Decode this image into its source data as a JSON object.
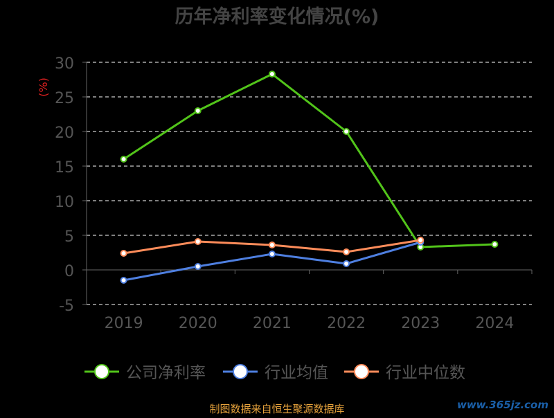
{
  "chart_data": {
    "type": "line",
    "title": "历年净利率变化情况(%)",
    "ylabel": "(%)",
    "xlabel": "",
    "categories": [
      "2019",
      "2020",
      "2021",
      "2022",
      "2023",
      "2024"
    ],
    "ylim": [
      -5,
      30
    ],
    "yticks": [
      -5,
      0,
      5,
      10,
      15,
      20,
      25,
      30
    ],
    "grid": true,
    "legend_position": "bottom",
    "series": [
      {
        "name": "公司净利率",
        "color": "#52c41a",
        "values": [
          16.0,
          23.0,
          28.3,
          20.0,
          3.3,
          3.7
        ]
      },
      {
        "name": "行业均值",
        "color": "#4e7fe0",
        "values": [
          -1.5,
          0.5,
          2.3,
          0.9,
          4.0,
          null
        ]
      },
      {
        "name": "行业中位数",
        "color": "#ff8c5a",
        "values": [
          2.4,
          4.1,
          3.6,
          2.6,
          4.3,
          null
        ]
      }
    ]
  },
  "footer": {
    "source": "制图数据来自恒生聚源数据库",
    "watermark": "www.365jz.com"
  }
}
